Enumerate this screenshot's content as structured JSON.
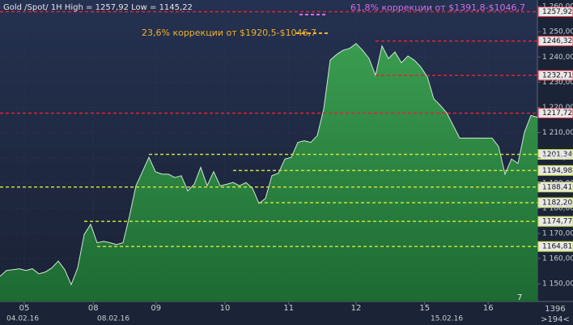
{
  "chart_data": {
    "type": "area",
    "title": "Gold /Spot/ 1H High = 1257,92 Low = 1145,22",
    "values": [
      1153.0,
      1155.3,
      1155.6,
      1156.0,
      1155.3,
      1156.0,
      1154.0,
      1154.7,
      1156.3,
      1159.0,
      1155.6,
      1149.7,
      1156.3,
      1169.6,
      1173.6,
      1166.3,
      1166.9,
      1166.3,
      1165.6,
      1166.3,
      1176.9,
      1188.9,
      1194.5,
      1200.2,
      1194.5,
      1193.5,
      1193.5,
      1192.2,
      1192.9,
      1186.9,
      1189.5,
      1196.2,
      1188.9,
      1194.5,
      1188.9,
      1189.5,
      1190.2,
      1188.9,
      1190.2,
      1187.9,
      1181.9,
      1183.9,
      1192.9,
      1193.9,
      1199.5,
      1200.2,
      1206.1,
      1206.8,
      1206.1,
      1208.8,
      1219.4,
      1238.7,
      1241.0,
      1242.7,
      1243.4,
      1245.3,
      1242.7,
      1239.4,
      1232.7,
      1244.4,
      1239.4,
      1242.0,
      1237.7,
      1240.4,
      1238.7,
      1236.0,
      1232.1,
      1223.4,
      1220.8,
      1217.8,
      1212.8,
      1207.8,
      1207.8,
      1207.8,
      1207.8,
      1207.8,
      1207.8,
      1204.5,
      1193.5,
      1199.5,
      1197.8,
      1210.1,
      1216.8,
      1216.1
    ],
    "color": "#2f8f45",
    "xlim": [
      0,
      83
    ],
    "xticks": [
      {
        "value": 3.75,
        "label": "05"
      },
      {
        "value": 14.4,
        "label": "08"
      },
      {
        "value": 24.1,
        "label": "09"
      },
      {
        "value": 34.75,
        "label": "10"
      },
      {
        "value": 44.6,
        "label": "11"
      },
      {
        "value": 55,
        "label": "12"
      },
      {
        "value": 65.6,
        "label": "15"
      },
      {
        "value": 75.4,
        "label": "16"
      }
    ],
    "date_labels": [
      {
        "value": 0.75,
        "label": "04.02.16"
      },
      {
        "value": 14.75,
        "label": "08.02.16"
      },
      {
        "value": 66.25,
        "label": "15.02.16"
      }
    ],
    "ylim": [
      1143,
      1262.6
    ],
    "yticks": [
      {
        "value": 1150,
        "label": "1 150,00"
      },
      {
        "value": 1160,
        "label": "1 160,00"
      },
      {
        "value": 1170,
        "label": "1 170,00"
      },
      {
        "value": 1180,
        "label": "1 180,00"
      },
      {
        "value": 1190,
        "label": "1 190,00"
      },
      {
        "value": 1200,
        "label": "1 200,00"
      },
      {
        "value": 1210,
        "label": "1 210,00"
      },
      {
        "value": 1220,
        "label": "1 220,00"
      },
      {
        "value": 1230,
        "label": "1 230,00"
      },
      {
        "value": 1240,
        "label": "1 240,00"
      },
      {
        "value": 1250,
        "label": "1 250,00"
      },
      {
        "value": 1260,
        "label": "1 260,00"
      }
    ],
    "grid": true,
    "levels": [
      {
        "value": 1257.92,
        "label": "1257,92",
        "color": "#e0243a",
        "from": 0
      },
      {
        "value": 1246.32,
        "label": "1246,32",
        "color": "#e0243a",
        "from": 58
      },
      {
        "value": 1232.71,
        "label": "1232,71",
        "color": "#e0243a",
        "from": 58
      },
      {
        "value": 1217.72,
        "label": "1217,72",
        "color": "#e0243a",
        "from": 0
      },
      {
        "value": 1201.34,
        "label": "1201,34",
        "color": "#c8e03a",
        "from": 23
      },
      {
        "value": 1194.98,
        "label": "1194,98",
        "color": "#c8e03a",
        "from": 36
      },
      {
        "value": 1188.41,
        "label": "1188,41",
        "color": "#c8e03a",
        "from": 0
      },
      {
        "value": 1182.2,
        "label": "1182,20",
        "color": "#c8e03a",
        "from": 40
      },
      {
        "value": 1174.77,
        "label": "1174,77",
        "color": "#c8e03a",
        "from": 13
      },
      {
        "value": 1164.81,
        "label": "1164,81",
        "color": "#c8e03a",
        "from": 15
      }
    ],
    "annotations": [
      "61,8% коррекции от $1391,8-$1046,7",
      "23,6% коррекции от $1920,5-$1046,7"
    ],
    "marker": "7",
    "corner": [
      "1396",
      ">194<"
    ]
  }
}
